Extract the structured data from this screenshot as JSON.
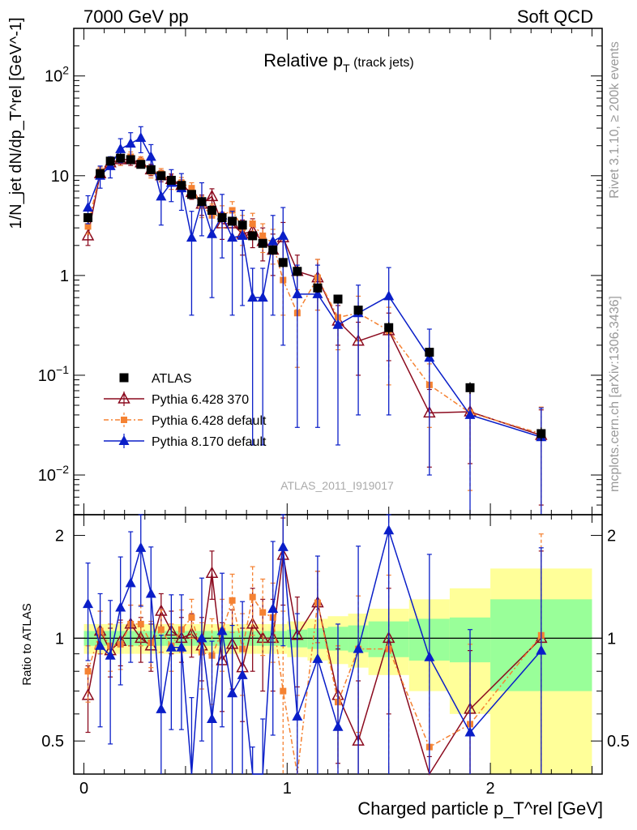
{
  "header": {
    "left": "7000 GeV pp",
    "right": "Soft QCD"
  },
  "side_text": {
    "rivet": "Rivet 3.1.10, ≥ 200k events",
    "mcplots": "mcplots.cern.ch [arXiv:1306.3436]"
  },
  "watermark": "ATLAS_2011_I919017",
  "colors": {
    "atlas": "#000000",
    "p6_370": "#8b0a1e",
    "p6_def": "#f58232",
    "p8": "#0a1ec8",
    "band_inner": "#99ff99",
    "band_outer": "#ffff99"
  },
  "chart_data": [
    {
      "type": "line",
      "panel": "main",
      "title": "Relative p",
      "title_sub": "T",
      "title_suffix": " (track jets)",
      "ylabel": "1/N_jet dN/dp_T^rel [GeV^-1]",
      "xlim": [
        -0.05,
        2.55
      ],
      "ylim_log": [
        0.004,
        300
      ],
      "yscale": "log",
      "yticks": [
        {
          "v": 100,
          "base": "10",
          "exp": "2"
        },
        {
          "v": 10,
          "label": "10"
        },
        {
          "v": 1,
          "label": "1"
        },
        {
          "v": 0.1,
          "base": "10",
          "exp": "−1"
        },
        {
          "v": 0.01,
          "base": "10",
          "exp": "−2"
        }
      ],
      "x": [
        0.02,
        0.08,
        0.13,
        0.18,
        0.23,
        0.28,
        0.33,
        0.38,
        0.43,
        0.48,
        0.53,
        0.58,
        0.63,
        0.68,
        0.73,
        0.78,
        0.83,
        0.88,
        0.93,
        0.98,
        1.05,
        1.15,
        1.25,
        1.35,
        1.5,
        1.7,
        1.9,
        2.25
      ],
      "series": [
        {
          "name": "ATLAS",
          "key": "atlas",
          "marker": "square",
          "values": [
            3.8,
            10.5,
            14,
            15,
            14.5,
            13,
            11.5,
            10,
            9,
            8,
            6.5,
            5.5,
            4.5,
            3.8,
            3.5,
            3.2,
            2.5,
            2.1,
            1.8,
            1.35,
            1.1,
            0.75,
            0.58,
            0.45,
            0.3,
            0.17,
            0.075,
            0.026
          ],
          "err": [
            0.4,
            0.8,
            1,
            1,
            1,
            1,
            1,
            0.8,
            0.7,
            0.6,
            0.5,
            0.5,
            0.4,
            0.35,
            0.3,
            0.3,
            0.25,
            0.2,
            0.2,
            0.15,
            0.12,
            0.08,
            0.06,
            0.05,
            0.04,
            0.02,
            0.01,
            0.004
          ]
        },
        {
          "name": "Pythia 6.428 370",
          "key": "p6_370",
          "marker": "open-triangle",
          "values": [
            2.5,
            10.5,
            13.5,
            14.5,
            14.5,
            13.5,
            11.5,
            10,
            9.2,
            8,
            6.8,
            5.2,
            6.2,
            3.3,
            3.3,
            2.6,
            2.8,
            2.2,
            1.8,
            2.4,
            1.1,
            0.95,
            0.35,
            0.22,
            0.28,
            0.042,
            0.043,
            0.025
          ],
          "err": [
            0.5,
            1.2,
            1.5,
            1.8,
            1.8,
            1.5,
            1.5,
            1.3,
            1.2,
            1.1,
            1,
            1.2,
            1.2,
            1,
            1,
            1,
            0.9,
            0.8,
            0.8,
            1,
            0.5,
            0.5,
            0.15,
            0.12,
            0.14,
            0.03,
            0.03,
            0.02
          ]
        },
        {
          "name": "Pythia 6.428 default",
          "key": "p6_def",
          "marker": "square-small",
          "dashed": true,
          "values": [
            3.1,
            11,
            13.5,
            14.5,
            15.5,
            14,
            11,
            10.5,
            8.5,
            8.5,
            7.5,
            5,
            4,
            4,
            4.5,
            3,
            3.3,
            2.5,
            2.1,
            0.9,
            0.42,
            0.95,
            0.38,
            0.42,
            0.28,
            0.08,
            0.042,
            0.026
          ],
          "err": [
            0.5,
            1.2,
            1.5,
            1.8,
            1.8,
            1.5,
            1.5,
            1.3,
            1.2,
            1.1,
            1,
            1.2,
            1.2,
            1,
            1,
            1,
            0.9,
            0.8,
            0.8,
            0.5,
            0.3,
            0.5,
            0.2,
            0.2,
            0.2,
            0.05,
            0.035,
            0.022
          ]
        },
        {
          "name": "Pythia 8.170 default",
          "key": "p8",
          "marker": "triangle",
          "values": [
            4.8,
            10,
            12.5,
            18.5,
            21,
            24,
            15.5,
            6.2,
            8.5,
            7.5,
            2.4,
            5.5,
            2.6,
            4,
            2.4,
            2.5,
            0.6,
            0.6,
            2.2,
            2.5,
            0.65,
            0.65,
            0.32,
            0.42,
            0.62,
            0.15,
            0.04,
            0.024
          ],
          "err": [
            1.5,
            2.5,
            3,
            5,
            6,
            7,
            5,
            3,
            3,
            3,
            2,
            3,
            2,
            2.5,
            2,
            2,
            0.58,
            0.58,
            1.8,
            2.3,
            0.62,
            0.62,
            0.3,
            0.38,
            0.58,
            0.14,
            0.038,
            0.023
          ]
        }
      ],
      "legend_position": "lower-left"
    },
    {
      "type": "line",
      "panel": "ratio",
      "ylabel": "Ratio to ATLAS",
      "xlabel": "Charged particle p_T^rel [GeV]",
      "xlim": [
        -0.05,
        2.55
      ],
      "ylim": [
        0.4,
        2.3
      ],
      "ytick_labels": [
        "0.5",
        "1",
        "2"
      ],
      "yticks": [
        0.5,
        1,
        2
      ],
      "xtick_labels": [
        "0",
        "1",
        "2"
      ],
      "xticks": [
        0,
        1,
        2
      ],
      "band_edges": [
        0,
        0.05,
        0.1,
        0.15,
        0.2,
        0.25,
        0.3,
        0.35,
        0.4,
        0.45,
        0.5,
        0.55,
        0.6,
        0.65,
        0.7,
        0.75,
        0.8,
        0.85,
        0.9,
        0.95,
        1.0,
        1.1,
        1.2,
        1.3,
        1.4,
        1.6,
        1.8,
        2.0,
        2.5
      ],
      "band_inner": [
        0.05,
        0.05,
        0.05,
        0.05,
        0.05,
        0.05,
        0.05,
        0.05,
        0.05,
        0.05,
        0.05,
        0.05,
        0.05,
        0.05,
        0.05,
        0.05,
        0.05,
        0.05,
        0.05,
        0.05,
        0.06,
        0.07,
        0.08,
        0.09,
        0.12,
        0.14,
        0.15,
        0.3
      ],
      "band_outer": [
        0.1,
        0.1,
        0.1,
        0.1,
        0.1,
        0.1,
        0.1,
        0.1,
        0.1,
        0.1,
        0.1,
        0.1,
        0.1,
        0.1,
        0.1,
        0.1,
        0.1,
        0.1,
        0.1,
        0.1,
        0.12,
        0.14,
        0.16,
        0.18,
        0.22,
        0.3,
        0.4,
        0.6
      ],
      "x": [
        0.02,
        0.08,
        0.13,
        0.18,
        0.23,
        0.28,
        0.33,
        0.38,
        0.43,
        0.48,
        0.53,
        0.58,
        0.63,
        0.68,
        0.73,
        0.78,
        0.83,
        0.88,
        0.93,
        0.98,
        1.05,
        1.15,
        1.25,
        1.35,
        1.5,
        1.7,
        1.9,
        2.25
      ],
      "series": [
        {
          "name": "Pythia 6.428 370",
          "key": "p6_370",
          "values": [
            0.68,
            1.05,
            0.92,
            0.98,
            1.1,
            1.0,
            0.95,
            1.2,
            1.05,
            1.0,
            1.03,
            0.95,
            1.55,
            0.86,
            0.96,
            0.82,
            1.1,
            1.0,
            1.0,
            1.75,
            1.02,
            1.27,
            0.68,
            0.5,
            1.0,
            0.25,
            0.62,
            1.0
          ],
          "err": [
            0.15,
            0.15,
            0.15,
            0.15,
            0.15,
            0.15,
            0.15,
            0.15,
            0.15,
            0.15,
            0.15,
            0.2,
            0.25,
            0.25,
            0.25,
            0.25,
            0.3,
            0.3,
            0.3,
            0.5,
            0.3,
            0.3,
            0.25,
            0.25,
            0.4,
            0.2,
            0.3,
            0.8
          ]
        },
        {
          "name": "Pythia 6.428 default",
          "key": "p6_def",
          "values": [
            0.8,
            1.05,
            0.95,
            0.96,
            1.1,
            1.1,
            0.97,
            1.06,
            0.95,
            1.06,
            1.15,
            0.91,
            0.89,
            1.05,
            1.29,
            0.93,
            1.32,
            1.19,
            1.15,
            0.7,
            0.38,
            1.27,
            0.65,
            0.93,
            0.93,
            0.48,
            0.56,
            1.02
          ],
          "err": [
            0.15,
            0.15,
            0.15,
            0.15,
            0.15,
            0.15,
            0.15,
            0.15,
            0.15,
            0.15,
            0.15,
            0.2,
            0.25,
            0.25,
            0.25,
            0.25,
            0.3,
            0.3,
            0.3,
            0.5,
            0.3,
            0.3,
            0.3,
            0.4,
            0.6,
            0.4,
            0.4,
            1.0
          ]
        },
        {
          "name": "Pythia 8.170 default",
          "key": "p8",
          "values": [
            1.26,
            0.95,
            0.89,
            1.23,
            1.45,
            1.84,
            1.35,
            0.62,
            0.94,
            0.94,
            0.37,
            1.0,
            0.58,
            1.05,
            0.69,
            0.78,
            0.24,
            0.29,
            1.22,
            1.85,
            0.59,
            0.87,
            0.55,
            0.93,
            2.07,
            0.88,
            0.53,
            0.92
          ],
          "err": [
            0.4,
            0.4,
            0.4,
            0.5,
            0.6,
            0.6,
            0.5,
            0.4,
            0.4,
            0.4,
            0.3,
            0.5,
            0.4,
            0.5,
            0.4,
            0.5,
            0.24,
            0.29,
            0.7,
            0.9,
            0.59,
            0.87,
            0.55,
            0.93,
            1.9,
            0.88,
            0.53,
            0.92
          ]
        }
      ]
    }
  ]
}
